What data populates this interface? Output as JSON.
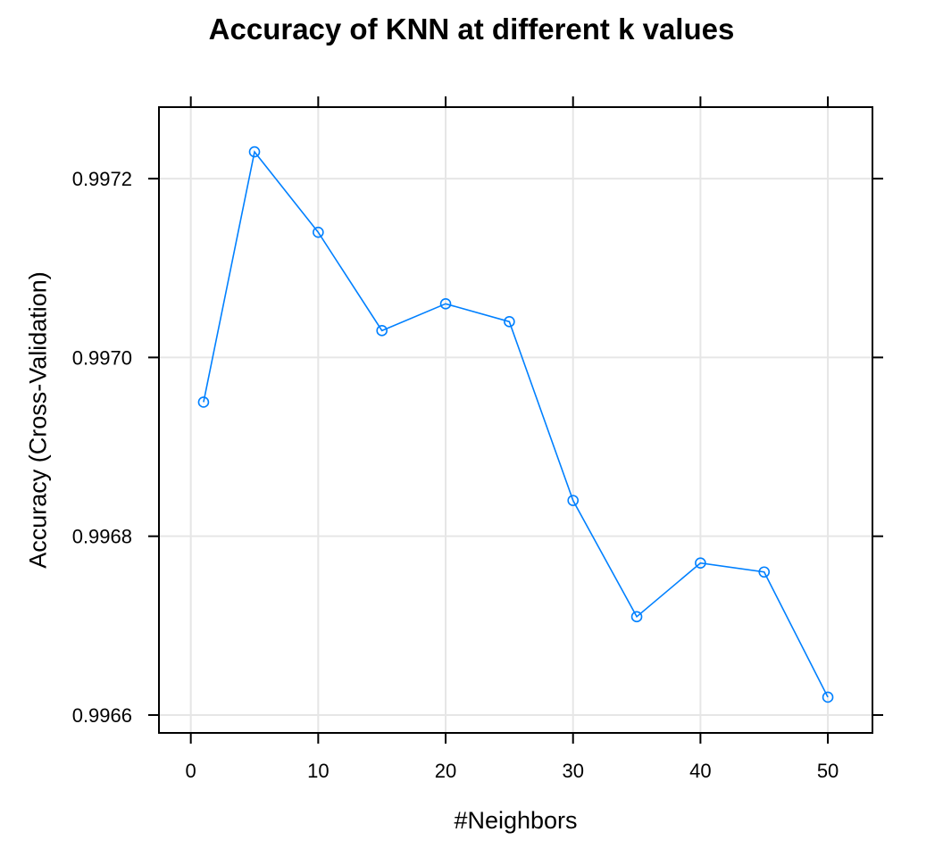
{
  "chart_data": {
    "type": "line",
    "title": "Accuracy of KNN at different k values",
    "xlabel": "#Neighbors",
    "ylabel": "Accuracy (Cross-Validation)",
    "x": [
      1,
      5,
      10,
      15,
      20,
      25,
      30,
      35,
      40,
      45,
      50
    ],
    "series": [
      {
        "values": [
          0.99695,
          0.99723,
          0.99714,
          0.99703,
          0.99706,
          0.99704,
          0.99684,
          0.99671,
          0.99677,
          0.99676,
          0.99662
        ],
        "color": "#0080ff"
      }
    ],
    "xlim": [
      -2.5,
      53.5
    ],
    "ylim": [
      0.99658,
      0.99728
    ],
    "xticks": [
      0,
      10,
      20,
      30,
      40,
      50
    ],
    "xtick_labels": [
      "0",
      "10",
      "20",
      "30",
      "40",
      "50"
    ],
    "yticks": [
      0.9966,
      0.9968,
      0.997,
      0.9972
    ],
    "ytick_labels": [
      "0.9966",
      "0.9968",
      "0.9970",
      "0.9972"
    ],
    "grid": true
  }
}
